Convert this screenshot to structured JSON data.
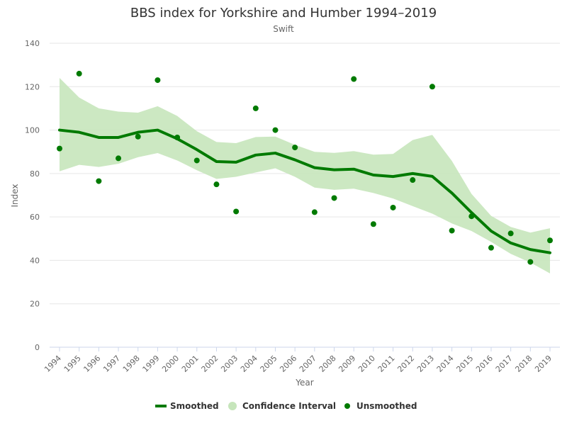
{
  "chart_data": {
    "type": "line",
    "title": "BBS index for Yorkshire and Humber 1994–2019",
    "subtitle": "Swift",
    "xlabel": "Year",
    "ylabel": "Index",
    "ylim": [
      0,
      140
    ],
    "yticks": [
      0,
      20,
      40,
      60,
      80,
      100,
      120,
      140
    ],
    "x": [
      1994,
      1995,
      1996,
      1997,
      1998,
      1999,
      2000,
      2001,
      2002,
      2003,
      2004,
      2005,
      2006,
      2007,
      2008,
      2009,
      2010,
      2011,
      2012,
      2013,
      2014,
      2015,
      2016,
      2017,
      2018,
      2019
    ],
    "xtick_labels": [
      "1994",
      "1995",
      "1996",
      "1997",
      "1998",
      "1999",
      "2000",
      "2001",
      "2002",
      "2003",
      "2004",
      "2005",
      "2006",
      "2007",
      "2008",
      "2009",
      "2010",
      "2011",
      "2012",
      "2013",
      "2014",
      "2015",
      "2016",
      "2017",
      "2018",
      "2019"
    ],
    "grid": true,
    "legend_position": "bottom-center",
    "series": [
      {
        "name": "Smoothed",
        "type": "line",
        "color": "#007a00",
        "values": [
          100,
          99,
          96.6,
          96.6,
          99,
          100,
          96,
          91,
          85.5,
          85.2,
          88.5,
          89.4,
          86.3,
          82.7,
          81.7,
          82,
          79.3,
          78.6,
          80,
          78.7,
          71,
          62,
          53.5,
          48,
          45,
          43.5
        ]
      },
      {
        "name": "Confidence Interval",
        "type": "area-range",
        "color": "#c6e5bb",
        "lower": [
          81,
          84,
          83,
          84.5,
          87.5,
          89.4,
          86,
          81.5,
          77.5,
          78.5,
          80.5,
          82.4,
          78.5,
          73.5,
          72.5,
          73,
          71,
          68.5,
          65,
          61.5,
          57,
          53.5,
          48.5,
          43,
          39,
          34
        ],
        "upper": [
          124,
          115,
          110,
          108.5,
          108,
          111,
          106.5,
          99.5,
          94.5,
          94,
          96.8,
          97,
          93.2,
          90,
          89.5,
          90.3,
          88.7,
          89,
          95.4,
          97.8,
          85.8,
          70.6,
          60.5,
          55.4,
          52.8,
          54.8
        ]
      },
      {
        "name": "Unsmoothed",
        "type": "scatter",
        "color": "#007a00",
        "values": [
          91.5,
          126,
          76.5,
          87,
          97,
          123,
          96.6,
          86,
          75,
          62.5,
          110,
          100,
          92,
          62.2,
          68.7,
          123.5,
          56.7,
          64.3,
          77,
          120,
          53.7,
          60.3,
          45.8,
          52.4,
          39.3,
          49.2
        ]
      }
    ]
  }
}
